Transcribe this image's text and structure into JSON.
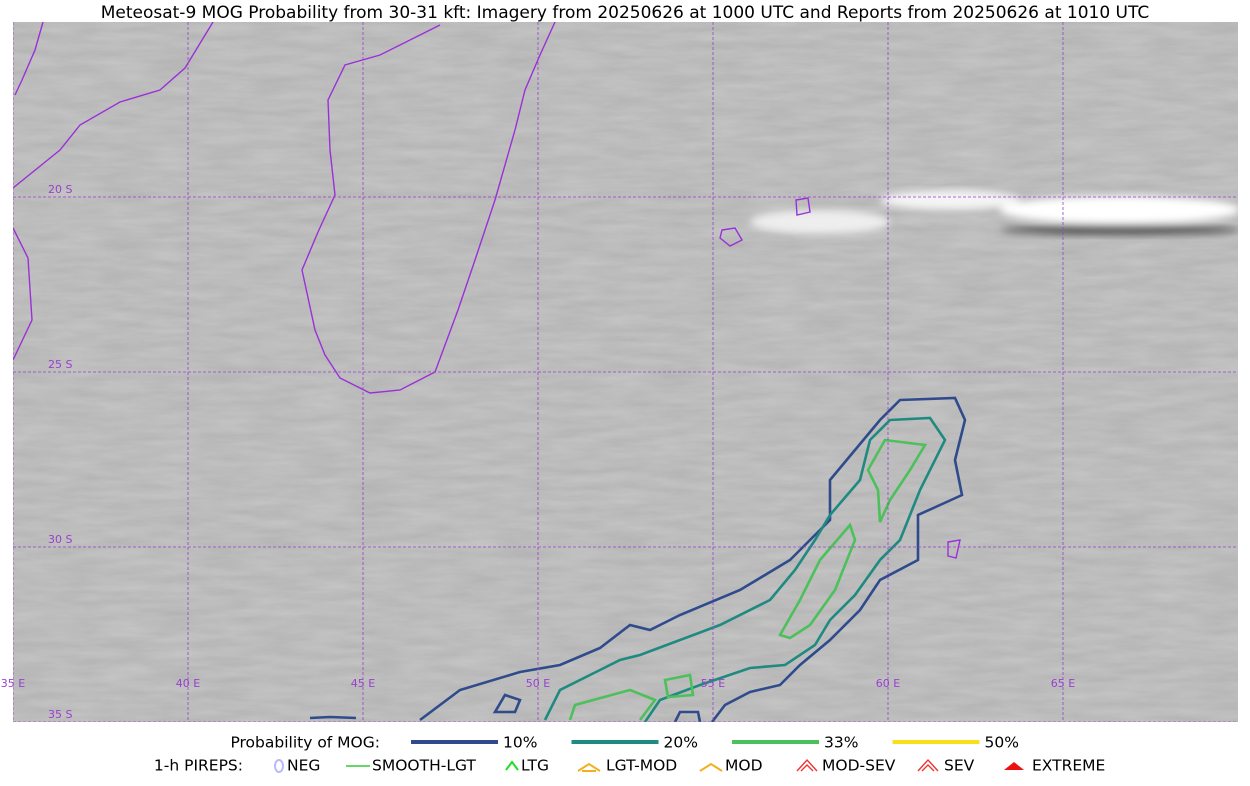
{
  "title": "Meteosat-9 MOG Probability from 30-31 kft: Imagery from 20250626 at 1000 UTC and Reports from 20250626 at 1010 UTC",
  "map": {
    "lat_labels": [
      "20 S",
      "25 S",
      "30 S",
      "35 S"
    ],
    "lon_labels": [
      "35 E",
      "40 E",
      "45 E",
      "50 E",
      "55 E",
      "60 E",
      "65 E"
    ]
  },
  "legend": {
    "probability": {
      "label": "Probability of MOG:",
      "items": [
        {
          "label": "10%",
          "color": "#2f4b8c"
        },
        {
          "label": "20%",
          "color": "#1f8a80"
        },
        {
          "label": "33%",
          "color": "#4cc05a"
        },
        {
          "label": "50%",
          "color": "#f7e01c"
        }
      ]
    },
    "pireps": {
      "label": "1-h PIREPS:",
      "items": [
        {
          "label": "NEG",
          "color": "#b8b8ff"
        },
        {
          "label": "SMOOTH-LGT",
          "color": "#33cc33"
        },
        {
          "label": "LTG",
          "color": "#22dd22"
        },
        {
          "label": "LGT-MOD",
          "color": "#f0b020"
        },
        {
          "label": "MOD",
          "color": "#f0b020"
        },
        {
          "label": "MOD-SEV",
          "color": "#ee3333"
        },
        {
          "label": "SEV",
          "color": "#ee3333"
        },
        {
          "label": "EXTREME",
          "color": "#ee1111"
        }
      ]
    }
  }
}
